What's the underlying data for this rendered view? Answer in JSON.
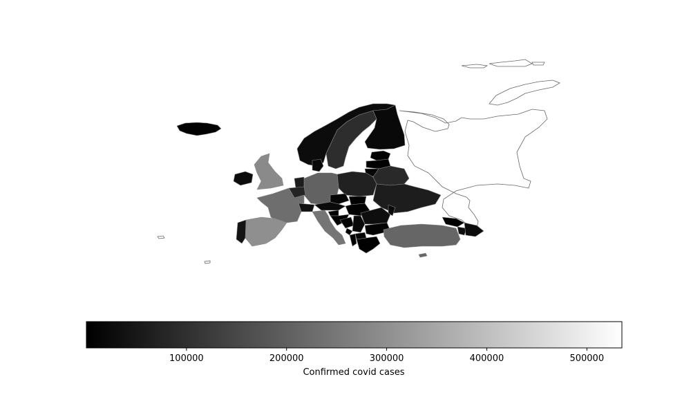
{
  "chart_data": {
    "type": "choropleth",
    "colormap": "gray",
    "colorbar": {
      "label": "Confirmed covid cases",
      "range": [
        0,
        535000
      ],
      "ticks": [
        100000,
        200000,
        300000,
        400000,
        500000
      ],
      "tick_labels": [
        "100000",
        "200000",
        "300000",
        "400000",
        "500000"
      ],
      "orientation": "horizontal",
      "placement": "bottom"
    },
    "regions": [
      {
        "name": "Iceland",
        "value": 4000
      },
      {
        "name": "Norway",
        "value": 25000
      },
      {
        "name": "Sweden",
        "value": 95000
      },
      {
        "name": "Finland",
        "value": 18000
      },
      {
        "name": "Estonia",
        "value": 6000
      },
      {
        "name": "Latvia",
        "value": 5000
      },
      {
        "name": "Lithuania",
        "value": 12000
      },
      {
        "name": "Belarus",
        "value": 85000
      },
      {
        "name": "Ukraine",
        "value": 60000
      },
      {
        "name": "Poland",
        "value": 70000
      },
      {
        "name": "Germany",
        "value": 205000
      },
      {
        "name": "Denmark",
        "value": 17000
      },
      {
        "name": "Netherlands",
        "value": 60000
      },
      {
        "name": "Belgium",
        "value": 75000
      },
      {
        "name": "France",
        "value": 230000
      },
      {
        "name": "United Kingdom",
        "value": 290000
      },
      {
        "name": "Ireland",
        "value": 25000
      },
      {
        "name": "Spain",
        "value": 300000
      },
      {
        "name": "Portugal",
        "value": 40000
      },
      {
        "name": "Italy",
        "value": 245000
      },
      {
        "name": "Switzerland",
        "value": 35000
      },
      {
        "name": "Austria",
        "value": 20000
      },
      {
        "name": "Czechia",
        "value": 12000
      },
      {
        "name": "Slovakia",
        "value": 2000
      },
      {
        "name": "Hungary",
        "value": 4500
      },
      {
        "name": "Slovenia",
        "value": 2000
      },
      {
        "name": "Croatia",
        "value": 3000
      },
      {
        "name": "Bosnia and Herzegovina",
        "value": 4000
      },
      {
        "name": "Serbia",
        "value": 18000
      },
      {
        "name": "Montenegro",
        "value": 1000
      },
      {
        "name": "Albania",
        "value": 3000
      },
      {
        "name": "North Macedonia",
        "value": 8000
      },
      {
        "name": "Romania",
        "value": 30000
      },
      {
        "name": "Moldova",
        "value": 20000
      },
      {
        "name": "Bulgaria",
        "value": 8000
      },
      {
        "name": "Greece",
        "value": 4000
      },
      {
        "name": "Turkey",
        "value": 215000
      },
      {
        "name": "Georgia",
        "value": 1000
      },
      {
        "name": "Armenia",
        "value": 30000
      },
      {
        "name": "Azerbaijan",
        "value": 25000
      }
    ],
    "no_data_regions": [
      "Russia"
    ]
  }
}
